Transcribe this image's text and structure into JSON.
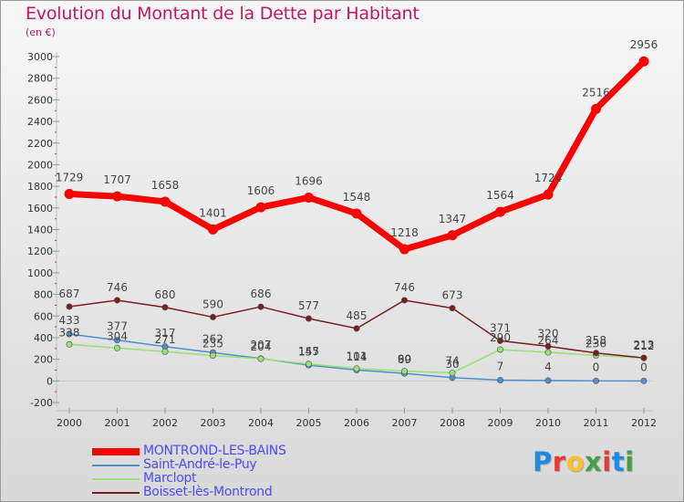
{
  "chart_data": {
    "type": "line",
    "title": "Evolution du Montant de la Dette par Habitant",
    "unit": "(en €)",
    "x": [
      "2000",
      "2001",
      "2002",
      "2003",
      "2004",
      "2005",
      "2006",
      "2007",
      "2008",
      "2009",
      "2010",
      "2011",
      "2012"
    ],
    "ylim": [
      -200,
      3000
    ],
    "yticks": [
      -200,
      0,
      200,
      400,
      600,
      800,
      1000,
      1200,
      1400,
      1600,
      1800,
      2000,
      2200,
      2400,
      2600,
      2800,
      3000
    ],
    "grid": false,
    "legend_position": "bottom-left",
    "series": [
      {
        "name": "MONTROND-LES-BAINS",
        "color": "#ff0000",
        "values": [
          1729,
          1707,
          1658,
          1401,
          1606,
          1696,
          1548,
          1218,
          1347,
          1564,
          1724,
          2516,
          2956
        ]
      },
      {
        "name": "Saint-André-le-Puy",
        "color": "#4f8fce",
        "values": [
          433,
          377,
          317,
          262,
          207,
          145,
          101,
          69,
          30,
          7,
          4,
          0,
          0
        ]
      },
      {
        "name": "Marclopt",
        "color": "#99e07a",
        "values": [
          338,
          304,
          271,
          235,
          204,
          157,
          114,
          90,
          74,
          290,
          264,
          236,
          212
        ]
      },
      {
        "name": "Boisset-lès-Montrond",
        "color": "#7a1e1e",
        "values": [
          687,
          746,
          680,
          590,
          686,
          577,
          485,
          746,
          673,
          371,
          320,
          258,
          213
        ]
      }
    ]
  },
  "brand": {
    "letters": [
      "P",
      "r",
      "o",
      "x",
      "i",
      "t",
      "i"
    ],
    "colors": [
      "#1e88e5",
      "#e53935",
      "#fbc02d",
      "#43a047",
      "#e53935",
      "#1e88e5",
      "#43a047"
    ]
  }
}
